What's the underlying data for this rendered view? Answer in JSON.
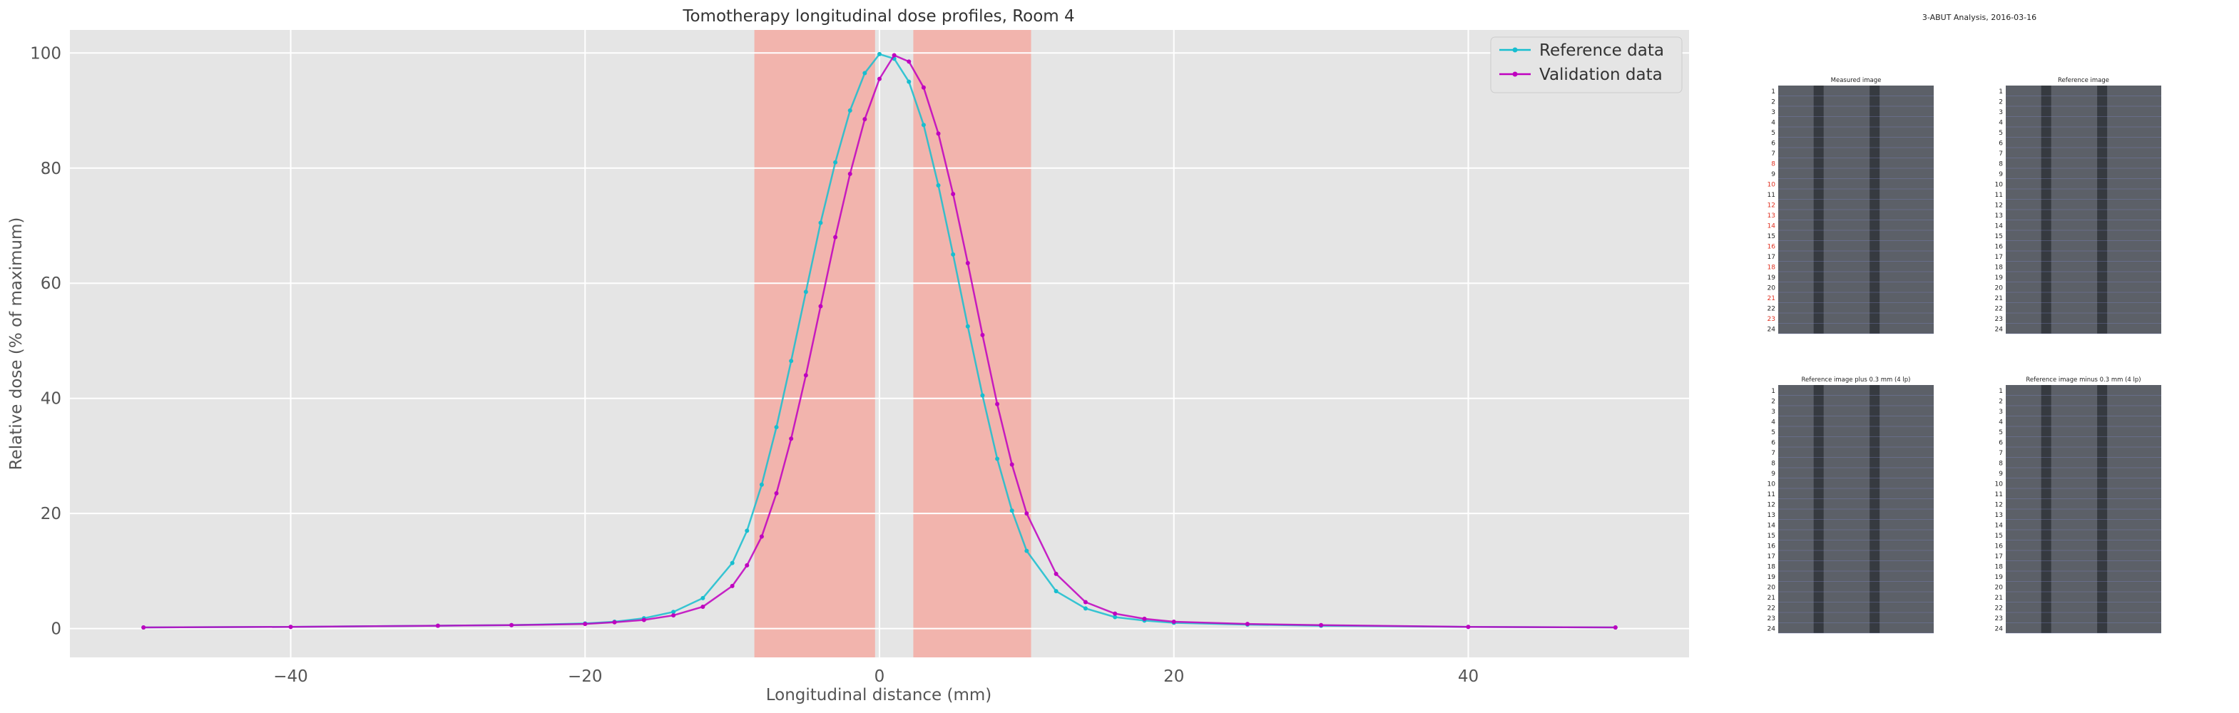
{
  "chart_data": [
    {
      "type": "line",
      "title": "Tomotherapy longitudinal dose profiles, Room 4",
      "xlabel": "Longitudinal distance (mm)",
      "ylabel": "Relative dose (% of maximum)",
      "xlim": [
        -55,
        55
      ],
      "ylim": [
        -5,
        104
      ],
      "xticks": [
        -40,
        -20,
        0,
        20,
        40
      ],
      "yticks": [
        0,
        20,
        40,
        60,
        80,
        100
      ],
      "xtick_labels": [
        "−40",
        "−20",
        "0",
        "20",
        "40"
      ],
      "ytick_labels": [
        "0",
        "20",
        "40",
        "60",
        "80",
        "100"
      ],
      "grid": true,
      "legend": "top-right",
      "shaded_regions": [
        {
          "x": [
            -8.5,
            -0.3
          ]
        },
        {
          "x": [
            2.3,
            10.3
          ]
        }
      ],
      "series": [
        {
          "name": "Reference data",
          "color": "#17BECF",
          "marker": "dot",
          "x": [
            -50,
            -40,
            -30,
            -25,
            -20,
            -18,
            -16,
            -14,
            -12,
            -10,
            -9,
            -8,
            -7,
            -6,
            -5,
            -4,
            -3,
            -2,
            -1,
            0,
            1,
            2,
            3,
            4,
            5,
            6,
            7,
            8,
            9,
            10,
            12,
            14,
            16,
            18,
            20,
            25,
            30,
            40,
            50
          ],
          "values": [
            0.2,
            0.3,
            0.5,
            0.6,
            0.9,
            1.2,
            1.8,
            2.9,
            5.3,
            11.4,
            17.0,
            25.0,
            35.0,
            46.5,
            58.5,
            70.5,
            81.0,
            90.0,
            96.5,
            99.8,
            99.0,
            95.0,
            87.5,
            77.0,
            65.0,
            52.5,
            40.5,
            29.5,
            20.5,
            13.5,
            6.5,
            3.5,
            2.0,
            1.4,
            1.0,
            0.7,
            0.5,
            0.3,
            0.2
          ]
        },
        {
          "name": "Validation data",
          "color": "#BF00BF",
          "marker": "dot",
          "x": [
            -50,
            -40,
            -30,
            -25,
            -20,
            -18,
            -16,
            -14,
            -12,
            -10,
            -9,
            -8,
            -7,
            -6,
            -5,
            -4,
            -3,
            -2,
            -1,
            0,
            1,
            2,
            3,
            4,
            5,
            6,
            7,
            8,
            9,
            10,
            12,
            14,
            16,
            18,
            20,
            25,
            30,
            40,
            50
          ],
          "values": [
            0.2,
            0.3,
            0.5,
            0.6,
            0.8,
            1.1,
            1.5,
            2.3,
            3.8,
            7.4,
            11.0,
            16.0,
            23.5,
            33.0,
            44.0,
            56.0,
            68.0,
            79.0,
            88.5,
            95.5,
            99.6,
            98.5,
            94.0,
            86.0,
            75.5,
            63.5,
            51.0,
            39.0,
            28.5,
            20.0,
            9.5,
            4.6,
            2.6,
            1.7,
            1.2,
            0.8,
            0.6,
            0.3,
            0.2
          ]
        }
      ]
    },
    {
      "type": "image-grid",
      "title": "3-ABUT Analysis, 2016-03-16",
      "panels": [
        {
          "title": "Measured image",
          "row_labels": [
            "1",
            "2",
            "3",
            "4",
            "5",
            "6",
            "7",
            "8",
            "9",
            "10",
            "11",
            "12",
            "13",
            "14",
            "15",
            "16",
            "17",
            "18",
            "19",
            "20",
            "21",
            "22",
            "23",
            "24"
          ],
          "highlighted_rows": [
            "8",
            "10",
            "12",
            "13",
            "14",
            "16",
            "18",
            "21",
            "23"
          ]
        },
        {
          "title": "Reference image",
          "row_labels": [
            "1",
            "2",
            "3",
            "4",
            "5",
            "6",
            "7",
            "8",
            "9",
            "10",
            "11",
            "12",
            "13",
            "14",
            "15",
            "16",
            "17",
            "18",
            "19",
            "20",
            "21",
            "22",
            "23",
            "24"
          ],
          "highlighted_rows": []
        },
        {
          "title": "Reference image plus 0.3 mm (4 lp)",
          "row_labels": [
            "1",
            "2",
            "3",
            "4",
            "5",
            "6",
            "7",
            "8",
            "9",
            "10",
            "11",
            "12",
            "13",
            "14",
            "15",
            "16",
            "17",
            "18",
            "19",
            "20",
            "21",
            "22",
            "23",
            "24"
          ],
          "highlighted_rows": []
        },
        {
          "title": "Reference image minus 0.3 mm (4 lp)",
          "row_labels": [
            "1",
            "2",
            "3",
            "4",
            "5",
            "6",
            "7",
            "8",
            "9",
            "10",
            "11",
            "12",
            "13",
            "14",
            "15",
            "16",
            "17",
            "18",
            "19",
            "20",
            "21",
            "22",
            "23",
            "24"
          ],
          "highlighted_rows": []
        }
      ]
    }
  ],
  "colors": {
    "axes_background": "#E5E5E5",
    "grid": "#FFFFFF",
    "shade": "#F4A8A0",
    "tick_text": "#555555",
    "highlight_row_label": "#E03020",
    "panel_image": "#5C6068"
  }
}
